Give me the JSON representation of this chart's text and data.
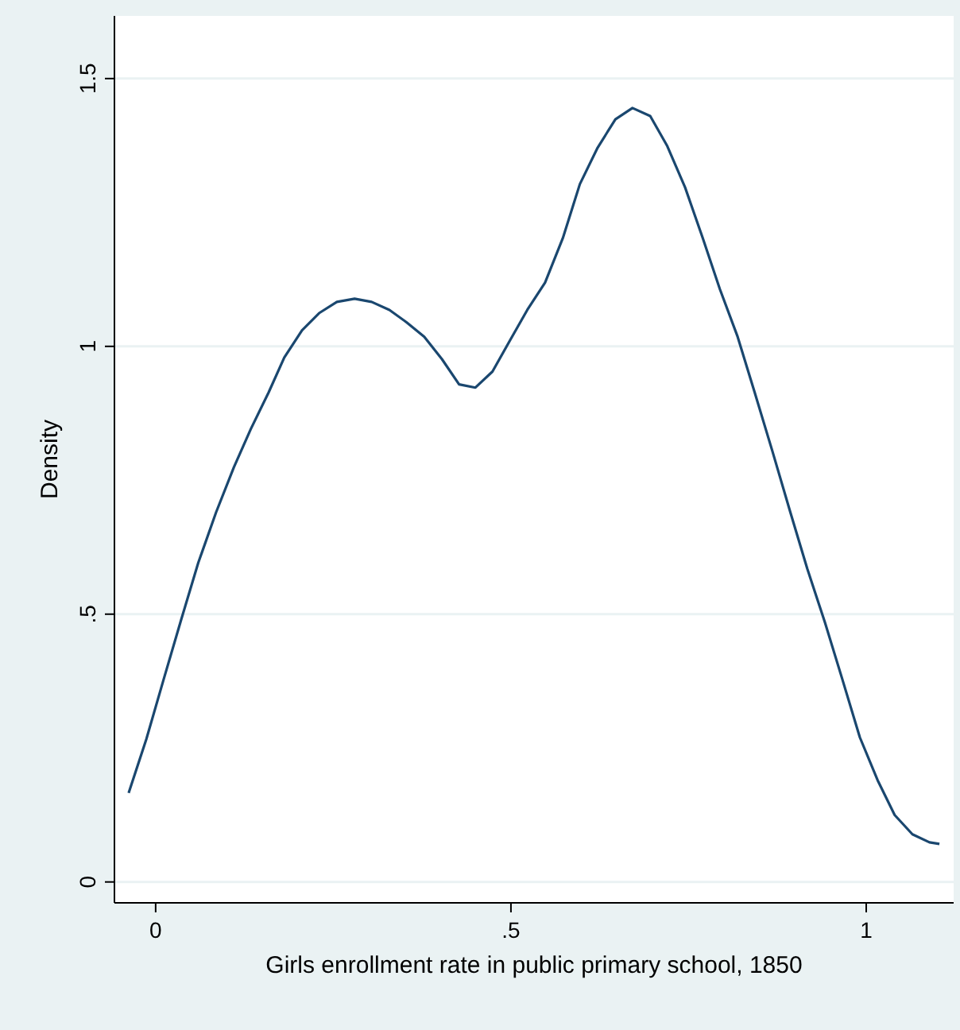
{
  "chart_data": {
    "type": "line",
    "xlabel": "Girls enrollment rate in public primary school, 1850",
    "ylabel": "Density",
    "x": [
      -0.038,
      -0.013,
      0.011,
      0.036,
      0.06,
      0.085,
      0.11,
      0.134,
      0.159,
      0.181,
      0.206,
      0.23,
      0.255,
      0.28,
      0.304,
      0.329,
      0.353,
      0.378,
      0.403,
      0.427,
      0.45,
      0.474,
      0.499,
      0.523,
      0.548,
      0.573,
      0.597,
      0.622,
      0.647,
      0.671,
      0.696,
      0.72,
      0.745,
      0.77,
      0.794,
      0.819,
      0.843,
      0.868,
      0.893,
      0.917,
      0.942,
      0.966,
      0.991,
      1.016,
      1.04,
      1.065,
      1.089,
      1.103
    ],
    "series": [
      {
        "color": "#1a476f",
        "values": [
          0.166,
          0.267,
          0.377,
          0.49,
          0.596,
          0.69,
          0.774,
          0.846,
          0.914,
          0.979,
          1.03,
          1.062,
          1.083,
          1.089,
          1.083,
          1.068,
          1.045,
          1.018,
          0.976,
          0.929,
          0.923,
          0.953,
          1.012,
          1.068,
          1.119,
          1.202,
          1.303,
          1.371,
          1.424,
          1.445,
          1.43,
          1.374,
          1.297,
          1.202,
          1.107,
          1.018,
          0.914,
          0.804,
          0.691,
          0.585,
          0.484,
          0.38,
          0.27,
          0.19,
          0.125,
          0.089,
          0.074,
          0.071
        ]
      }
    ],
    "xlim": [
      -0.058,
      1.123
    ],
    "ylim": [
      -0.039,
      1.617
    ],
    "xticks": [
      0,
      {
        "value": 0.5,
        "label": ".5"
      },
      1
    ],
    "yticks": [
      0,
      {
        "value": 0.5,
        "label": ".5"
      },
      1,
      1.5
    ],
    "grid": "y",
    "marker": "none",
    "line_style": "solid"
  }
}
